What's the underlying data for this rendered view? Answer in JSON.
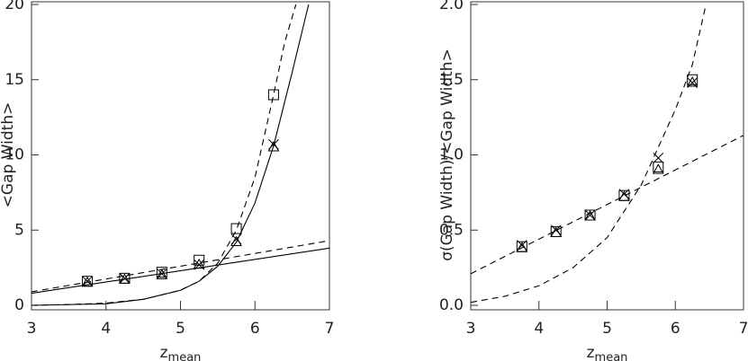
{
  "chart_data": [
    {
      "type": "scatter",
      "y_label": "<Gap Width>",
      "x_label": "z",
      "x_label_sub": "mean",
      "xlim": [
        3,
        7
      ],
      "xticks": [
        3,
        4,
        5,
        6,
        7
      ],
      "ylim": [
        0,
        20
      ],
      "yticks": [
        0,
        5,
        10,
        15,
        20
      ],
      "series": [
        {
          "marker": "square",
          "color": "#000000",
          "x": [
            3.75,
            4.25,
            4.75,
            5.25,
            5.75,
            6.25
          ],
          "values": [
            1.6,
            1.8,
            2.2,
            3.0,
            5.1,
            14.0
          ]
        },
        {
          "marker": "triangle",
          "color": "#000000",
          "x": [
            3.75,
            4.25,
            4.75,
            5.25,
            5.75,
            6.25
          ],
          "values": [
            1.5,
            1.7,
            2.0,
            2.7,
            4.2,
            10.5
          ]
        },
        {
          "marker": "cross",
          "color": "#000000",
          "x": [
            3.75,
            4.25,
            4.75,
            5.25,
            5.75,
            6.25
          ],
          "values": [
            1.6,
            1.8,
            2.1,
            2.7,
            4.4,
            10.7
          ]
        },
        {
          "line": "dashed",
          "color": "#000000",
          "x": [
            3,
            7
          ],
          "values": [
            0.9,
            4.3
          ]
        },
        {
          "line": "solid",
          "color": "#000000",
          "x": [
            3,
            7
          ],
          "values": [
            0.8,
            3.8
          ]
        },
        {
          "line": "dashed",
          "color": "#000000",
          "x": [
            3,
            3.5,
            4,
            4.5,
            5,
            5.25,
            5.5,
            5.75,
            6,
            6.25,
            6.4,
            6.55
          ],
          "values": [
            0.0,
            0.05,
            0.15,
            0.4,
            1.0,
            1.6,
            2.8,
            5.0,
            8.5,
            14.0,
            17.5,
            20.0
          ]
        },
        {
          "line": "solid",
          "color": "#000000",
          "x": [
            3,
            4,
            4.5,
            5,
            5.25,
            5.5,
            5.75,
            6,
            6.25,
            6.5,
            6.72
          ],
          "values": [
            0.0,
            0.1,
            0.4,
            1.0,
            1.6,
            2.6,
            4.2,
            6.8,
            10.6,
            15.5,
            20.0
          ]
        }
      ]
    },
    {
      "type": "scatter",
      "y_label": "σ(Gap Width)/<Gap Width>",
      "x_label": "z",
      "x_label_sub": "mean",
      "xlim": [
        3,
        7
      ],
      "xticks": [
        3,
        4,
        5,
        6,
        7
      ],
      "ylim": [
        0,
        2
      ],
      "yticks": [
        {
          "value": 0,
          "label": "0.0"
        },
        0.5,
        {
          "value": 1,
          "label": "1.0"
        },
        1.5,
        {
          "value": 2,
          "label": "2.0"
        }
      ],
      "series": [
        {
          "marker": "square",
          "color": "#000000",
          "x": [
            3.75,
            4.25,
            4.75,
            5.25,
            5.75,
            6.25
          ],
          "values": [
            0.39,
            0.49,
            0.6,
            0.73,
            0.92,
            1.5
          ]
        },
        {
          "marker": "triangle",
          "color": "#000000",
          "x": [
            3.75,
            4.25,
            4.75,
            5.25,
            5.75,
            6.25
          ],
          "values": [
            0.38,
            0.48,
            0.59,
            0.72,
            0.9,
            1.48
          ]
        },
        {
          "marker": "cross",
          "color": "#000000",
          "x": [
            3.75,
            4.25,
            4.75,
            5.25,
            5.75,
            6.25
          ],
          "values": [
            0.4,
            0.5,
            0.6,
            0.74,
            0.98,
            1.48
          ]
        },
        {
          "line": "dashed",
          "color": "#000000",
          "x": [
            3,
            7
          ],
          "values": [
            0.21,
            1.13
          ]
        },
        {
          "line": "dashed",
          "color": "#000000",
          "x": [
            3,
            3.5,
            4,
            4.5,
            5,
            5.5,
            6,
            6.25,
            6.45
          ],
          "values": [
            0.02,
            0.06,
            0.13,
            0.25,
            0.45,
            0.8,
            1.3,
            1.6,
            2.0
          ]
        }
      ]
    }
  ]
}
